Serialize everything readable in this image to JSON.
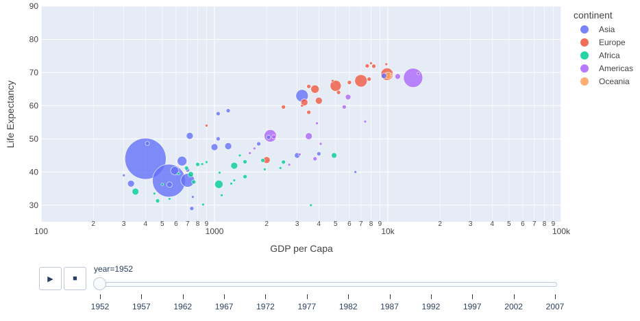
{
  "chart_data": {
    "type": "scatter",
    "variant": "bubble",
    "title": "",
    "xlabel": "GDP per Capa",
    "ylabel": "Life Expectancy",
    "x_scale": "log",
    "xlim": [
      100,
      100000
    ],
    "ylim": [
      25,
      90
    ],
    "x_major_ticks": [
      {
        "v": 100,
        "label": "100"
      },
      {
        "v": 1000,
        "label": "1000"
      },
      {
        "v": 10000,
        "label": "10k"
      },
      {
        "v": 100000,
        "label": "100k"
      }
    ],
    "x_minor_labels": [
      "2",
      "3",
      "4",
      "5",
      "6",
      "7",
      "8",
      "9"
    ],
    "y_ticks": [
      30,
      40,
      50,
      60,
      70,
      80,
      90
    ],
    "grid": true,
    "legend": {
      "title": "continent",
      "placement": "right",
      "items": [
        {
          "name": "Asia",
          "color": "#636efa"
        },
        {
          "name": "Europe",
          "color": "#ef553b"
        },
        {
          "name": "Africa",
          "color": "#00cc96"
        },
        {
          "name": "Americas",
          "color": "#ab63fa"
        },
        {
          "name": "Oceania",
          "color": "#ffa15a"
        }
      ]
    },
    "size_encodes": "population (bubble area)",
    "series": [
      {
        "name": "Asia",
        "color": "#636efa",
        "points": [
          {
            "x": 400,
            "y": 44,
            "s": 30
          },
          {
            "x": 546,
            "y": 37.4,
            "s": 24
          },
          {
            "x": 700,
            "y": 37.5,
            "s": 10
          },
          {
            "x": 650,
            "y": 43.3,
            "s": 7
          },
          {
            "x": 590,
            "y": 40.4,
            "s": 6
          },
          {
            "x": 720,
            "y": 50.9,
            "s": 5
          },
          {
            "x": 330,
            "y": 36.5,
            "s": 5
          },
          {
            "x": 550,
            "y": 36.2,
            "s": 4
          },
          {
            "x": 1000,
            "y": 47.5,
            "s": 5
          },
          {
            "x": 1200,
            "y": 47.8,
            "s": 5
          },
          {
            "x": 3200,
            "y": 63,
            "s": 9
          },
          {
            "x": 1050,
            "y": 50,
            "s": 3
          },
          {
            "x": 1050,
            "y": 57.6,
            "s": 3
          },
          {
            "x": 1200,
            "y": 58.5,
            "s": 3
          },
          {
            "x": 3000,
            "y": 45,
            "s": 4
          },
          {
            "x": 4000,
            "y": 45.5,
            "s": 3
          },
          {
            "x": 740,
            "y": 29,
            "s": 3
          },
          {
            "x": 750,
            "y": 32.5,
            "s": 2
          },
          {
            "x": 6500,
            "y": 40,
            "s": 2
          },
          {
            "x": 1800,
            "y": 48.5,
            "s": 3
          },
          {
            "x": 410,
            "y": 48.6,
            "s": 3
          },
          {
            "x": 300,
            "y": 39,
            "s": 2
          },
          {
            "x": 2050,
            "y": 50.5,
            "s": 3
          },
          {
            "x": 700,
            "y": 40.6,
            "s": 3
          },
          {
            "x": 9500,
            "y": 69,
            "s": 4
          }
        ]
      },
      {
        "name": "Europe",
        "color": "#ef553b",
        "points": [
          {
            "x": 7000,
            "y": 67.5,
            "s": 9
          },
          {
            "x": 9900,
            "y": 69.5,
            "s": 9
          },
          {
            "x": 5000,
            "y": 66,
            "s": 8
          },
          {
            "x": 3800,
            "y": 65,
            "s": 6
          },
          {
            "x": 3300,
            "y": 61,
            "s": 5
          },
          {
            "x": 4000,
            "y": 61.5,
            "s": 5
          },
          {
            "x": 2000,
            "y": 43.6,
            "s": 5
          },
          {
            "x": 2500,
            "y": 59.6,
            "s": 3
          },
          {
            "x": 6000,
            "y": 67,
            "s": 3
          },
          {
            "x": 7600,
            "y": 72,
            "s": 3
          },
          {
            "x": 8300,
            "y": 71.9,
            "s": 3
          },
          {
            "x": 3500,
            "y": 65.8,
            "s": 3
          },
          {
            "x": 5200,
            "y": 64,
            "s": 3
          },
          {
            "x": 3500,
            "y": 58,
            "s": 3
          },
          {
            "x": 7800,
            "y": 68,
            "s": 3
          },
          {
            "x": 9800,
            "y": 72.5,
            "s": 2
          },
          {
            "x": 3200,
            "y": 60,
            "s": 2
          },
          {
            "x": 900,
            "y": 54,
            "s": 2
          },
          {
            "x": 8000,
            "y": 72.8,
            "s": 2
          },
          {
            "x": 4800,
            "y": 67.5,
            "s": 2
          }
        ]
      },
      {
        "name": "Africa",
        "color": "#00cc96",
        "points": [
          {
            "x": 1060,
            "y": 36.3,
            "s": 6
          },
          {
            "x": 1300,
            "y": 41.9,
            "s": 5
          },
          {
            "x": 730,
            "y": 39.3,
            "s": 4
          },
          {
            "x": 350,
            "y": 34.1,
            "s": 5
          },
          {
            "x": 690,
            "y": 41.2,
            "s": 3
          },
          {
            "x": 800,
            "y": 42.3,
            "s": 3
          },
          {
            "x": 1500,
            "y": 43.1,
            "s": 3
          },
          {
            "x": 2500,
            "y": 43,
            "s": 3
          },
          {
            "x": 1900,
            "y": 43.5,
            "s": 3
          },
          {
            "x": 4900,
            "y": 45,
            "s": 4
          },
          {
            "x": 470,
            "y": 31.3,
            "s": 3
          },
          {
            "x": 550,
            "y": 31.9,
            "s": 2
          },
          {
            "x": 1500,
            "y": 38.6,
            "s": 3
          },
          {
            "x": 1300,
            "y": 37.5,
            "s": 2
          },
          {
            "x": 850,
            "y": 42.4,
            "s": 2
          },
          {
            "x": 3600,
            "y": 30,
            "s": 2
          },
          {
            "x": 1100,
            "y": 33,
            "s": 2
          },
          {
            "x": 760,
            "y": 37,
            "s": 3
          },
          {
            "x": 900,
            "y": 43,
            "s": 2
          },
          {
            "x": 1250,
            "y": 36.5,
            "s": 2
          },
          {
            "x": 450,
            "y": 33.5,
            "s": 2
          },
          {
            "x": 1950,
            "y": 40.8,
            "s": 2
          },
          {
            "x": 620,
            "y": 39.5,
            "s": 2
          },
          {
            "x": 860,
            "y": 30.2,
            "s": 2
          },
          {
            "x": 1400,
            "y": 45,
            "s": 2
          },
          {
            "x": 2400,
            "y": 41.2,
            "s": 2
          },
          {
            "x": 1070,
            "y": 39.8,
            "s": 2
          },
          {
            "x": 500,
            "y": 36.3,
            "s": 2
          }
        ]
      },
      {
        "name": "Americas",
        "color": "#ab63fa",
        "points": [
          {
            "x": 13990,
            "y": 68.4,
            "s": 14
          },
          {
            "x": 2100,
            "y": 50.9,
            "s": 9
          },
          {
            "x": 3500,
            "y": 50.8,
            "s": 5
          },
          {
            "x": 5900,
            "y": 62.6,
            "s": 4
          },
          {
            "x": 11400,
            "y": 68.8,
            "s": 4
          },
          {
            "x": 3800,
            "y": 44,
            "s": 3
          },
          {
            "x": 5600,
            "y": 59.6,
            "s": 3
          },
          {
            "x": 2200,
            "y": 50.6,
            "s": 3
          },
          {
            "x": 4100,
            "y": 48.5,
            "s": 2
          },
          {
            "x": 7400,
            "y": 55.2,
            "s": 2
          },
          {
            "x": 1600,
            "y": 45.7,
            "s": 2
          },
          {
            "x": 3900,
            "y": 54.7,
            "s": 2
          },
          {
            "x": 2700,
            "y": 42.2,
            "s": 2
          },
          {
            "x": 3100,
            "y": 45.3,
            "s": 2
          },
          {
            "x": 15000,
            "y": 69.7,
            "s": 2
          },
          {
            "x": 1700,
            "y": 47.1,
            "s": 2
          }
        ]
      },
      {
        "name": "Oceania",
        "color": "#ffa15a",
        "points": [
          {
            "x": 10040,
            "y": 69.1,
            "s": 5
          },
          {
            "x": 10500,
            "y": 69.4,
            "s": 2
          }
        ]
      }
    ]
  },
  "animation": {
    "play_icon": "play-icon",
    "stop_icon": "stop-icon",
    "slider_label": "year=1952",
    "current_value": "1952",
    "steps": [
      "1952",
      "1957",
      "1962",
      "1967",
      "1972",
      "1977",
      "1982",
      "1987",
      "1992",
      "1997",
      "2002",
      "2007"
    ]
  }
}
